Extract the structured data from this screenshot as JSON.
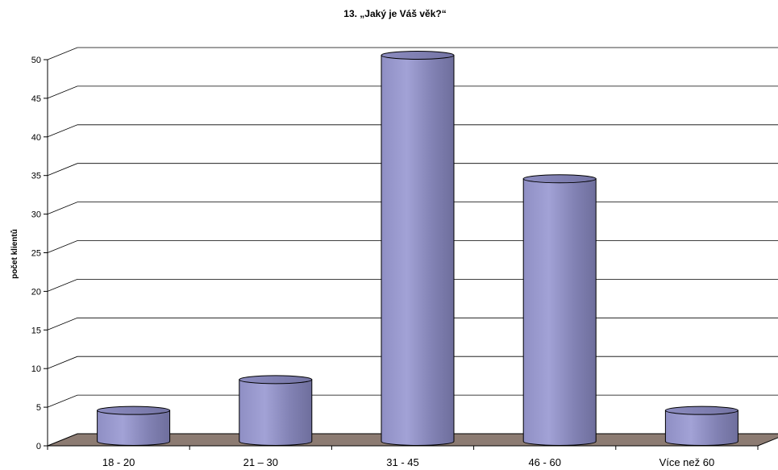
{
  "chart_data": {
    "type": "bar",
    "title": "13. „Jaký je Váš věk?“",
    "ylabel": "počet klientů",
    "xlabel": "",
    "categories": [
      "18 - 20",
      "21 – 30",
      "31 - 45",
      "46 - 60",
      "Více než 60"
    ],
    "values": [
      4,
      8,
      50,
      34,
      4
    ],
    "ylim": [
      0,
      50
    ],
    "yticks": [
      0,
      5,
      10,
      15,
      20,
      25,
      30,
      35,
      40,
      45,
      50
    ],
    "grid": true,
    "legend": "none",
    "colors": {
      "bar": "#9999cc",
      "floor": "#8c7b72",
      "wall": "#ffffff",
      "grid": "#000000"
    }
  }
}
